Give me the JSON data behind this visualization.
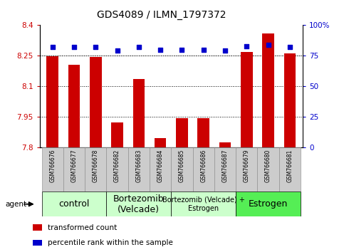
{
  "title": "GDS4089 / ILMN_1797372",
  "samples": [
    "GSM766676",
    "GSM766677",
    "GSM766678",
    "GSM766682",
    "GSM766683",
    "GSM766684",
    "GSM766685",
    "GSM766686",
    "GSM766687",
    "GSM766679",
    "GSM766680",
    "GSM766681"
  ],
  "transformed_counts": [
    8.248,
    8.205,
    8.245,
    7.924,
    8.135,
    7.845,
    7.945,
    7.944,
    7.824,
    8.27,
    8.36,
    8.26
  ],
  "percentile_ranks": [
    82,
    82,
    82,
    79,
    82,
    80,
    80,
    80,
    79,
    83,
    84,
    82
  ],
  "ymin": 7.8,
  "ymax": 8.4,
  "yticks": [
    7.8,
    7.95,
    8.1,
    8.25,
    8.4
  ],
  "ytick_labels": [
    "7.8",
    "7.95",
    "8.1",
    "8.25",
    "8.4"
  ],
  "y2min": 0,
  "y2max": 100,
  "y2ticks": [
    0,
    25,
    50,
    75,
    100
  ],
  "y2tick_labels": [
    "0",
    "25",
    "50",
    "75",
    "100%"
  ],
  "bar_color": "#cc0000",
  "dot_color": "#0000cc",
  "bar_width": 0.55,
  "group_labels": [
    "control",
    "Bortezomib\n(Velcade)",
    "Bortezomib (Velcade) +\nEstrogen",
    "Estrogen"
  ],
  "group_ranges": [
    [
      0,
      2
    ],
    [
      3,
      5
    ],
    [
      6,
      8
    ],
    [
      9,
      11
    ]
  ],
  "group_colors": [
    "#ccffcc",
    "#ccffcc",
    "#ccffcc",
    "#55ee55"
  ],
  "group_font_sizes": [
    9,
    9,
    7,
    9
  ],
  "group_row_label": "agent",
  "legend_bar_label": "transformed count",
  "legend_dot_label": "percentile rank within the sample",
  "tick_color_left": "#cc0000",
  "tick_color_right": "#0000cc",
  "bg_xticklabels": "#cccccc",
  "title_fontsize": 10
}
